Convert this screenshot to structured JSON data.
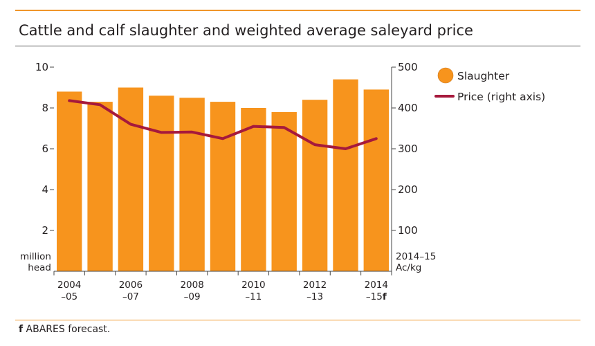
{
  "title": "Cattle and calf slaughter and weighted average saleyard price",
  "footnote": {
    "marker": "f",
    "text": " ABARES forecast."
  },
  "chart_data": {
    "type": "bar",
    "categories": [
      "2004–05",
      "2005–06",
      "2006–07",
      "2007–08",
      "2008–09",
      "2009–10",
      "2010–11",
      "2011–12",
      "2012–13",
      "2013–14",
      "2014–15f"
    ],
    "x_tick_labels": [
      {
        "year": "2004",
        "span": "–05",
        "flag": ""
      },
      {
        "year": "2006",
        "span": "–07",
        "flag": ""
      },
      {
        "year": "2008",
        "span": "–09",
        "flag": ""
      },
      {
        "year": "2010",
        "span": "–11",
        "flag": ""
      },
      {
        "year": "2012",
        "span": "–13",
        "flag": ""
      },
      {
        "year": "2014",
        "span": "–15",
        "flag": "f"
      }
    ],
    "x_tick_indices": [
      0,
      2,
      4,
      6,
      8,
      10
    ],
    "series": [
      {
        "name": "Slaughter",
        "type": "bar",
        "axis": "left",
        "color": "#f7941d",
        "values": [
          8.8,
          8.3,
          9.0,
          8.6,
          8.5,
          8.3,
          8.0,
          7.8,
          8.4,
          9.4,
          8.9
        ]
      },
      {
        "name": "Price (right axis)",
        "type": "line",
        "axis": "right",
        "color": "#a6193c",
        "values": [
          418,
          408,
          360,
          340,
          341,
          325,
          355,
          352,
          310,
          300,
          325
        ]
      }
    ],
    "y_left": {
      "label_lines": [
        "million",
        "head"
      ],
      "ylim": [
        0,
        10
      ],
      "ticks": [
        2,
        4,
        6,
        8,
        10
      ]
    },
    "y_right": {
      "label_lines": [
        "2014–15",
        "Ac/kg"
      ],
      "ylim": [
        0,
        500
      ],
      "ticks": [
        100,
        200,
        300,
        400,
        500
      ]
    },
    "legend_position": "top-right",
    "grid": false
  }
}
